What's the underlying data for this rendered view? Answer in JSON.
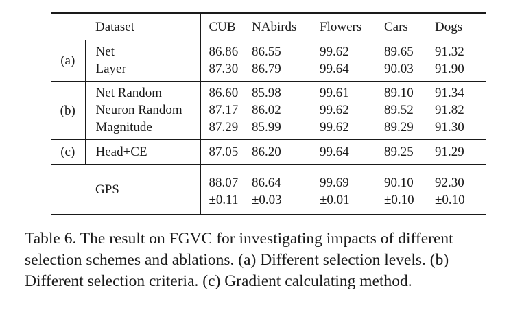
{
  "table": {
    "header": [
      "Dataset",
      "CUB",
      "NAbirds",
      "Flowers",
      "Cars",
      "Dogs"
    ],
    "groups": [
      {
        "label": "(a)",
        "rows": [
          {
            "method": "Net",
            "values": [
              "86.86",
              "86.55",
              "99.62",
              "89.65",
              "91.32"
            ]
          },
          {
            "method": "Layer",
            "values": [
              "87.30",
              "86.79",
              "99.64",
              "90.03",
              "91.90"
            ]
          }
        ]
      },
      {
        "label": "(b)",
        "rows": [
          {
            "method": "Net Random",
            "values": [
              "86.60",
              "85.98",
              "99.61",
              "89.10",
              "91.34"
            ]
          },
          {
            "method": "Neuron Random",
            "values": [
              "87.17",
              "86.02",
              "99.62",
              "89.52",
              "91.82"
            ]
          },
          {
            "method": "Magnitude",
            "values": [
              "87.29",
              "85.99",
              "99.62",
              "89.29",
              "91.30"
            ]
          }
        ]
      },
      {
        "label": "(c)",
        "rows": [
          {
            "method": "Head+CE",
            "values": [
              "87.05",
              "86.20",
              "99.64",
              "89.25",
              "91.29"
            ]
          }
        ]
      }
    ],
    "gps": {
      "method": "GPS",
      "values": [
        "88.07",
        "86.64",
        "99.69",
        "90.10",
        "92.30"
      ],
      "std": [
        "±0.11",
        "±0.03",
        "±0.01",
        "±0.10",
        "±0.10"
      ]
    }
  },
  "caption": {
    "lines": [
      "Table 6. The result on FGVC for investigating impacts of different",
      "selection schemes and ablations. (a) Different selection levels. (b)",
      "Different selection criteria. (c) Gradient calculating method."
    ]
  }
}
